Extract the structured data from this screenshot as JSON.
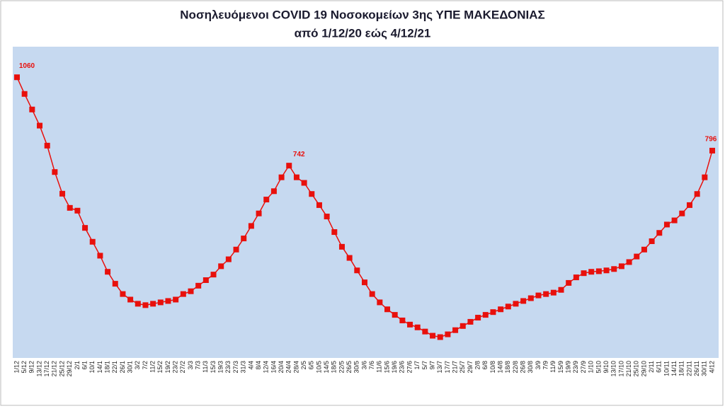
{
  "chart_data": {
    "type": "line",
    "title": "Νοσηλευόμενοι COVID 19  Νοσοκομείων  3ης ΥΠΕ ΜΑΚΕΔΟΝΙΑΣ",
    "subtitle": "από 1/12/20 εώς 4/12/21",
    "categories": [
      "1/12",
      "5/12",
      "9/12",
      "13/12",
      "17/12",
      "21/12",
      "25/12",
      "29/12",
      "2/1",
      "6/1",
      "10/1",
      "14/1",
      "18/1",
      "22/1",
      "26/1",
      "30/1",
      "3/2",
      "7/2",
      "11/2",
      "15/2",
      "19/2",
      "23/2",
      "27/2",
      "3/3",
      "7/3",
      "11/3",
      "15/3",
      "19/3",
      "23/3",
      "27/3",
      "31/3",
      "4/4",
      "8/4",
      "12/4",
      "16/4",
      "20/4",
      "24/4",
      "28/4",
      "2/5",
      "6/5",
      "10/5",
      "14/5",
      "18/5",
      "22/5",
      "26/5",
      "30/5",
      "3/6",
      "7/6",
      "11/6",
      "15/6",
      "19/6",
      "23/6",
      "27/6",
      "1/7",
      "5/7",
      "9/7",
      "13/7",
      "17/7",
      "21/7",
      "25/7",
      "29/7",
      "2/8",
      "6/8",
      "10/8",
      "14/8",
      "18/8",
      "22/8",
      "26/8",
      "30/8",
      "3/9",
      "7/9",
      "11/9",
      "15/9",
      "19/9",
      "23/9",
      "27/9",
      "1/10",
      "5/10",
      "9/10",
      "13/10",
      "17/10",
      "21/10",
      "25/10",
      "29/10",
      "2/11",
      "6/11",
      "10/11",
      "14/11",
      "18/11",
      "22/11",
      "26/11",
      "30/11",
      "4/12"
    ],
    "values": [
      1060,
      1000,
      944,
      886,
      814,
      719,
      641,
      590,
      580,
      518,
      468,
      418,
      360,
      317,
      280,
      260,
      245,
      240,
      245,
      250,
      255,
      260,
      280,
      290,
      310,
      330,
      350,
      380,
      405,
      440,
      480,
      525,
      570,
      620,
      650,
      700,
      742,
      700,
      680,
      640,
      600,
      559,
      503,
      450,
      410,
      365,
      322,
      280,
      250,
      225,
      205,
      185,
      170,
      160,
      145,
      130,
      125,
      135,
      150,
      165,
      180,
      195,
      205,
      215,
      225,
      235,
      245,
      255,
      265,
      275,
      280,
      285,
      295,
      320,
      340,
      355,
      360,
      362,
      365,
      370,
      380,
      395,
      415,
      440,
      470,
      500,
      530,
      545,
      570,
      600,
      640,
      700,
      796
    ],
    "value_labels": [
      "1060",
      null,
      null,
      null,
      null,
      null,
      null,
      null,
      null,
      null,
      null,
      null,
      null,
      null,
      null,
      null,
      null,
      null,
      null,
      null,
      null,
      null,
      null,
      null,
      null,
      null,
      null,
      null,
      null,
      null,
      null,
      null,
      null,
      null,
      null,
      null,
      "742",
      null,
      null,
      null,
      null,
      null,
      null,
      null,
      null,
      null,
      null,
      null,
      null,
      null,
      null,
      null,
      null,
      null,
      null,
      null,
      null,
      null,
      null,
      null,
      null,
      null,
      null,
      null,
      null,
      null,
      null,
      null,
      null,
      null,
      null,
      null,
      null,
      null,
      null,
      null,
      null,
      null,
      null,
      null,
      null,
      null,
      null,
      null,
      null,
      null,
      null,
      null,
      null,
      null,
      null,
      null,
      "796"
    ],
    "color": "#e8100c",
    "ylim": [
      50,
      1170
    ]
  }
}
